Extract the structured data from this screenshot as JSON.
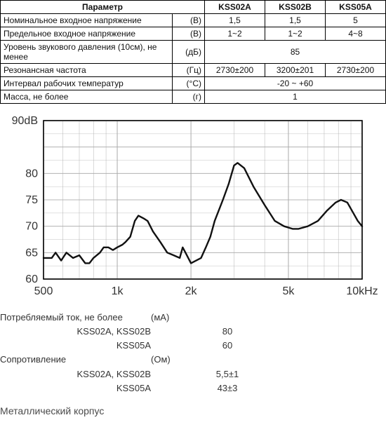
{
  "table": {
    "header_param": "Параметр",
    "columns": [
      "KSS02A",
      "KSS02B",
      "KSS05A"
    ],
    "rows": [
      {
        "param": "Номинальное входное напряжение",
        "unit": "(В)",
        "vals": [
          "1,5",
          "1,5",
          "5"
        ]
      },
      {
        "param": "Предельное входное напряжение",
        "unit": "(В)",
        "vals": [
          "1~2",
          "1~2",
          "4~8"
        ]
      },
      {
        "param": "Уровень звукового давления (10см), не менее",
        "unit": "(дБ)",
        "merged": "85"
      },
      {
        "param": "Резонансная частота",
        "unit": "(Гц)",
        "vals": [
          "2730±200",
          "3200±201",
          "2730±200"
        ]
      },
      {
        "param": "Интервал рабочих температур",
        "unit": "(°С)",
        "merged": "-20 ~ +60"
      },
      {
        "param": "Масса, не более",
        "unit": "(г)",
        "merged": "1"
      }
    ]
  },
  "chart": {
    "type": "line",
    "ylabel": "90dB",
    "ylim": [
      60,
      90
    ],
    "yticks": [
      60,
      65,
      70,
      75,
      80,
      90
    ],
    "ytick_labels": {
      "60": "60",
      "65": "65",
      "70": "70",
      "75": "75",
      "80": "80",
      "90": "90dB"
    },
    "xlabels": [
      "500",
      "1k",
      "2k",
      "5k",
      "10kHz"
    ],
    "xlog_major": [
      500,
      1000,
      2000,
      5000,
      10000
    ],
    "background_color": "#ffffff",
    "grid_color": "#aaaaaa",
    "line_color": "#111111",
    "line_width": 2.4,
    "label_fontsize": 16,
    "series": [
      [
        500,
        64
      ],
      [
        540,
        64
      ],
      [
        560,
        65
      ],
      [
        590,
        63.5
      ],
      [
        620,
        65
      ],
      [
        660,
        64
      ],
      [
        700,
        64.5
      ],
      [
        740,
        63
      ],
      [
        770,
        63
      ],
      [
        800,
        64
      ],
      [
        850,
        65
      ],
      [
        880,
        66
      ],
      [
        920,
        66
      ],
      [
        960,
        65.5
      ],
      [
        1000,
        66
      ],
      [
        1050,
        66.5
      ],
      [
        1080,
        67
      ],
      [
        1130,
        68
      ],
      [
        1180,
        71
      ],
      [
        1220,
        72
      ],
      [
        1280,
        71.5
      ],
      [
        1330,
        71
      ],
      [
        1400,
        69
      ],
      [
        1500,
        67
      ],
      [
        1600,
        65
      ],
      [
        1700,
        64.5
      ],
      [
        1800,
        64
      ],
      [
        1850,
        66
      ],
      [
        1900,
        65
      ],
      [
        2000,
        63
      ],
      [
        2100,
        63.5
      ],
      [
        2200,
        64
      ],
      [
        2300,
        66
      ],
      [
        2400,
        68
      ],
      [
        2500,
        71
      ],
      [
        2700,
        75
      ],
      [
        2850,
        78
      ],
      [
        3000,
        81.5
      ],
      [
        3100,
        82
      ],
      [
        3300,
        81
      ],
      [
        3600,
        77.5
      ],
      [
        4000,
        74
      ],
      [
        4400,
        71
      ],
      [
        4800,
        70
      ],
      [
        5200,
        69.5
      ],
      [
        5500,
        69.5
      ],
      [
        6000,
        70
      ],
      [
        6600,
        71
      ],
      [
        7200,
        73
      ],
      [
        7800,
        74.5
      ],
      [
        8200,
        75
      ],
      [
        8700,
        74.5
      ],
      [
        9200,
        72.5
      ],
      [
        9600,
        71
      ],
      [
        10000,
        70
      ]
    ]
  },
  "bottom": {
    "current_label": "Потребляемый ток, не более",
    "current_unit": "(мА)",
    "current_rows": [
      {
        "name": "KSS02A, KSS02B",
        "val": "80"
      },
      {
        "name": "KSS05A",
        "val": "60"
      }
    ],
    "resist_label": "Сопротивление",
    "resist_unit": "(Ом)",
    "resist_rows": [
      {
        "name": "KSS02A, KSS02B",
        "val": "5,5±1"
      },
      {
        "name": "KSS05A",
        "val": "43±3"
      }
    ]
  },
  "footer": "Металлический корпус"
}
